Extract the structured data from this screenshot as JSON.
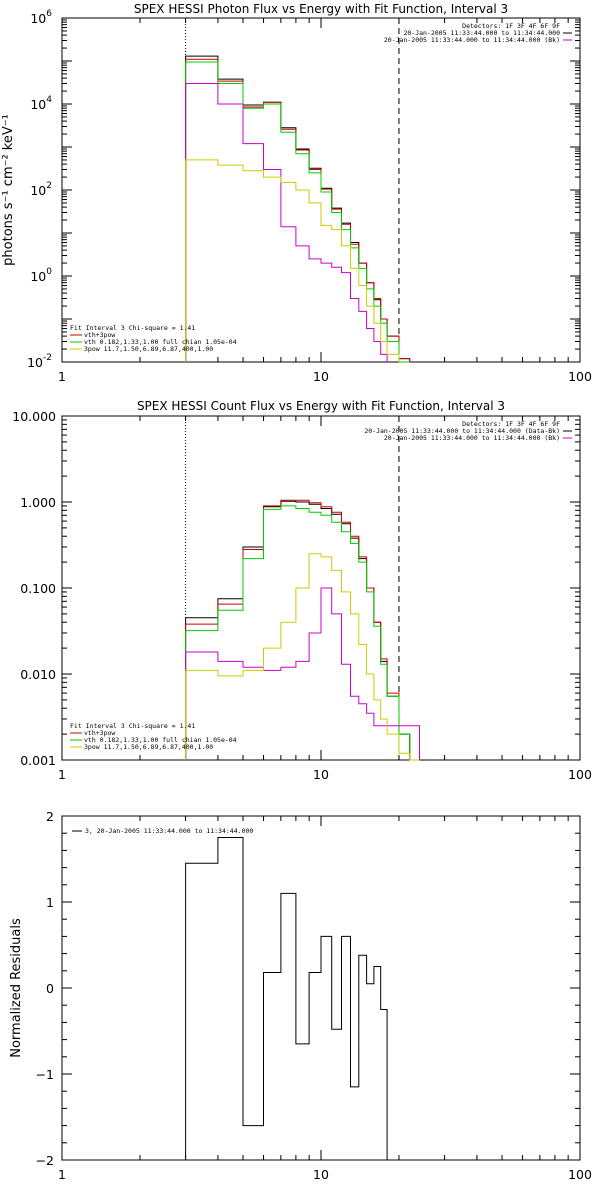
{
  "chart_data": [
    {
      "type": "line",
      "title": "SPEX HESSI Photon Flux vs Energy with Fit Function, Interval 3",
      "xlabel": "",
      "ylabel": "photons s⁻¹ cm⁻² keV⁻¹",
      "xscale": "log",
      "yscale": "log",
      "xlim": [
        1,
        100
      ],
      "ylim": [
        0.01,
        1000000
      ],
      "x_ticks": [
        "1",
        "10",
        "100"
      ],
      "y_ticks": [
        "10-2",
        "10⁰",
        "10²",
        "10⁴",
        "10⁶"
      ],
      "y_ticks_base": [
        "10",
        "10",
        "10",
        "10",
        "10"
      ],
      "y_ticks_exp": [
        "-2",
        "0",
        "2",
        "4",
        "6"
      ],
      "vlines": [
        {
          "x": 3,
          "style": "dotted",
          "color": "#000000"
        },
        {
          "x": 20,
          "style": "dashed",
          "color": "#000000"
        }
      ],
      "legend_top": [
        "Detectors: 1F 3F 4F 6F 9F",
        "20-Jan-2005 11:33:44.000 to 11:34:44.000",
        "20-Jan-2005 11:33:44.000 to 11:34:44.000 (Bk)"
      ],
      "legend_top_colors": [
        "",
        "#000000",
        "#cc00cc"
      ],
      "legend_bottom": [
        "Fit Interval 3    Chi-square = 1.41",
        "vth+3pow",
        "vth 0.182,1.33,1.00  full chian 1.05e-04",
        "3pow 11.7,1.50,6.89,6.87,400,1.00"
      ],
      "legend_bottom_colors": [
        "",
        "#cc0000",
        "#00cc00",
        "#cccc00"
      ],
      "edges": [
        3,
        4,
        5,
        6,
        7,
        8,
        9,
        10,
        11,
        12,
        13,
        14,
        15,
        16,
        17,
        18,
        20,
        22,
        24
      ],
      "series": [
        {
          "color": "#000000",
          "values": [
            130000,
            38000,
            9500,
            11000,
            2800,
            900,
            320,
            110,
            38,
            17,
            6,
            2,
            0.7,
            0.28,
            0.1,
            0.04,
            0.012,
            null
          ]
        },
        {
          "color": "#cc0000",
          "values": [
            110000,
            34000,
            8500,
            11000,
            2600,
            850,
            300,
            105,
            36,
            16,
            5.5,
            2,
            0.7,
            0.3,
            0.1,
            0.04,
            0.012,
            null
          ]
        },
        {
          "color": "#00cc00",
          "values": [
            95000,
            30000,
            8000,
            10000,
            2200,
            700,
            250,
            90,
            30,
            12,
            4.5,
            1.5,
            0.5,
            0.2,
            0.08,
            0.03,
            0.01,
            null
          ]
        },
        {
          "color": "#cc00cc",
          "values": [
            30000,
            10000,
            1200,
            300,
            14,
            5,
            2.5,
            2,
            1.6,
            1.2,
            0.3,
            0.15,
            0.06,
            0.03,
            0.015,
            null,
            null,
            null
          ]
        },
        {
          "color": "#cccc00",
          "values": [
            500,
            380,
            280,
            200,
            150,
            100,
            50,
            15,
            12,
            5,
            1.5,
            0.6,
            0.2,
            0.08,
            0.03,
            0.015,
            null,
            null
          ]
        }
      ]
    },
    {
      "type": "line",
      "title": "SPEX HESSI Count Flux vs Energy with Fit Function, Interval 3",
      "xlabel": "",
      "ylabel": "",
      "xscale": "log",
      "yscale": "log",
      "xlim": [
        1,
        100
      ],
      "ylim": [
        0.001,
        10
      ],
      "x_ticks": [
        "1",
        "10",
        "100"
      ],
      "y_ticks": [
        "10.000",
        "1.000",
        "0.100",
        "0.010",
        "0.001"
      ],
      "vlines": [
        {
          "x": 3,
          "style": "dotted",
          "color": "#000000"
        },
        {
          "x": 20,
          "style": "dashed",
          "color": "#000000"
        }
      ],
      "legend_top": [
        "Detectors: 1F 3F 4F 6F 9F",
        "20-Jan-2005 11:33:44.000 to 11:34:44.000 (Data-Bk)",
        "20-Jan-2005 11:33:44.000 to 11:34:44.000 (Bk)"
      ],
      "legend_top_colors": [
        "",
        "#000000",
        "#cc00cc"
      ],
      "legend_bottom": [
        "Fit Interval 3    Chi-square = 1.41",
        "vth+3pow",
        "vth 0.182,1.33,1.00  full chian 1.05e-04",
        "3pow 11.7,1.50,6.89,6.87,400,1.00"
      ],
      "legend_bottom_colors": [
        "",
        "#cc0000",
        "#00cc00",
        "#cccc00"
      ],
      "edges": [
        3,
        4,
        5,
        6,
        7,
        8,
        9,
        10,
        11,
        12,
        13,
        14,
        15,
        16,
        17,
        18,
        20,
        22,
        24
      ],
      "series": [
        {
          "color": "#000000",
          "values": [
            0.045,
            0.075,
            0.3,
            0.88,
            1.02,
            1.0,
            0.94,
            0.84,
            0.72,
            0.56,
            0.38,
            0.22,
            0.1,
            0.04,
            0.014,
            0.0055,
            0.002,
            0.001
          ]
        },
        {
          "color": "#cc0000",
          "values": [
            0.038,
            0.065,
            0.28,
            0.9,
            1.05,
            1.05,
            0.98,
            0.88,
            0.76,
            0.58,
            0.4,
            0.23,
            0.1,
            0.04,
            0.015,
            0.006,
            0.002,
            0.001
          ]
        },
        {
          "color": "#00cc00",
          "values": [
            0.032,
            0.055,
            0.22,
            0.82,
            0.9,
            0.84,
            0.76,
            0.7,
            0.58,
            0.45,
            0.33,
            0.2,
            0.09,
            0.036,
            0.013,
            0.0055,
            0.002,
            0.001
          ]
        },
        {
          "color": "#cc00cc",
          "values": [
            0.018,
            0.014,
            0.012,
            0.011,
            0.012,
            0.014,
            0.03,
            0.1,
            0.05,
            0.013,
            0.0055,
            0.0045,
            0.0035,
            0.0025,
            0.0025,
            0.0025,
            0.0025,
            0.0025
          ]
        },
        {
          "color": "#cccc00",
          "values": [
            0.011,
            0.0095,
            0.011,
            0.02,
            0.04,
            0.1,
            0.25,
            0.23,
            0.16,
            0.09,
            0.05,
            0.022,
            0.01,
            0.005,
            0.003,
            0.002,
            0.0012,
            0.001
          ]
        }
      ]
    },
    {
      "type": "line",
      "title": "",
      "xlabel": "",
      "ylabel": "Normalized Residuals",
      "xscale": "log",
      "yscale": "linear",
      "xlim": [
        1,
        100
      ],
      "ylim": [
        -2,
        2
      ],
      "x_ticks": [
        "1",
        "10",
        "100"
      ],
      "y_ticks": [
        "2",
        "1",
        "0",
        "−1",
        "−2"
      ],
      "y_tick_values": [
        2,
        1,
        0,
        -1,
        -2
      ],
      "legend_top": [
        "3, 20-Jan-2005 11:33:44.000 to 11:34:44.000"
      ],
      "legend_top_colors": [
        "#000000"
      ],
      "edges": [
        3,
        4,
        5,
        6,
        7,
        8,
        9,
        10,
        11,
        12,
        13,
        14,
        15,
        16,
        17,
        18,
        20
      ],
      "series": [
        {
          "color": "#000000",
          "values": [
            1.45,
            1.75,
            -1.6,
            0.18,
            1.1,
            -0.65,
            0.18,
            0.6,
            -0.48,
            0.6,
            -1.15,
            0.38,
            0.05,
            0.25,
            -0.25,
            -2.2
          ],
          "close_to_min": true
        }
      ]
    }
  ]
}
